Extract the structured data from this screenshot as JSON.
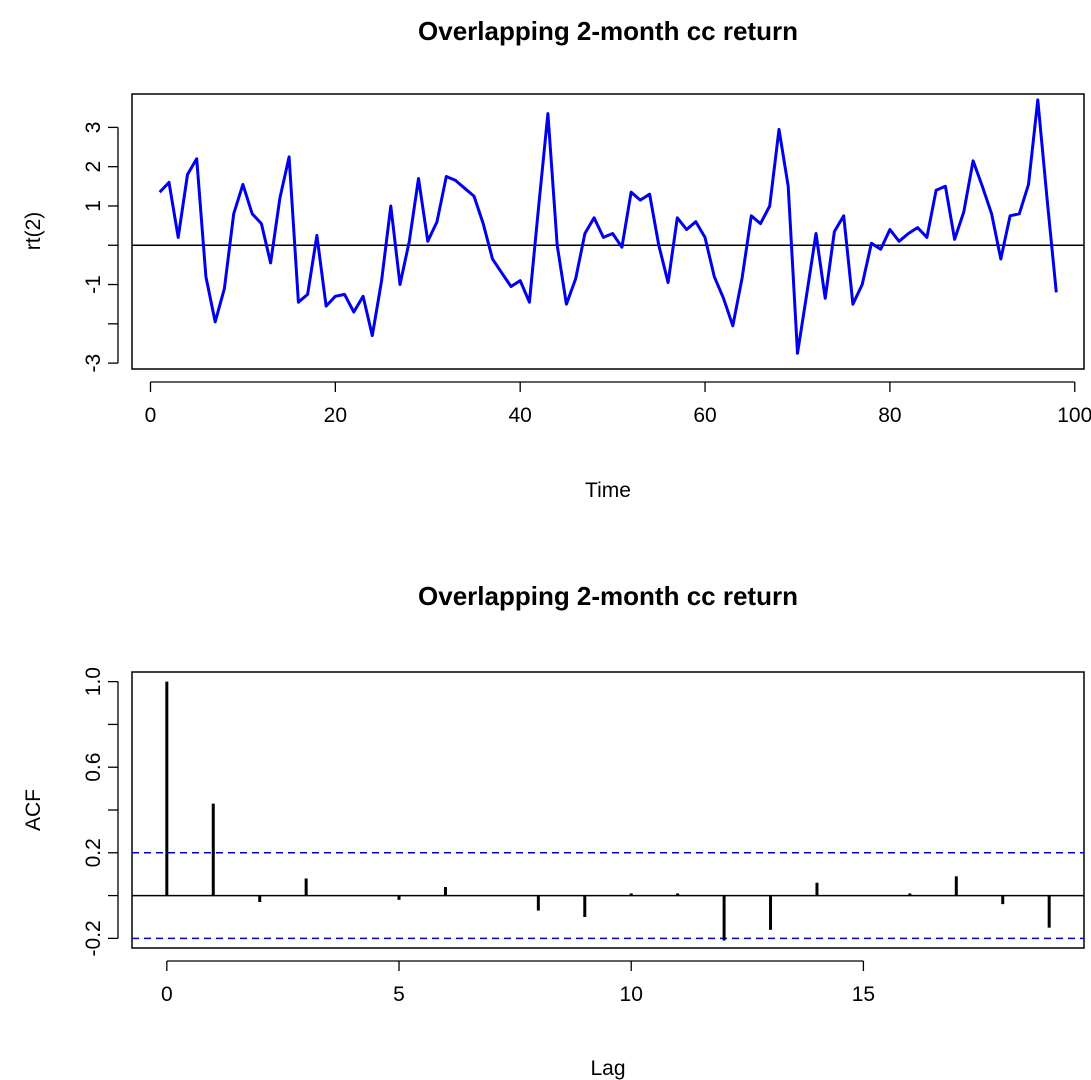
{
  "chart_data": [
    {
      "type": "line",
      "title": "Overlapping 2-month cc return",
      "xlabel": "Time",
      "ylabel": "rt(2)",
      "xlim": [
        -2,
        101
      ],
      "ylim": [
        -3.15,
        3.85
      ],
      "x_ticks": [
        0,
        20,
        40,
        60,
        80,
        100
      ],
      "y_ticks": [
        -3,
        -2,
        -1,
        0,
        1,
        2,
        3
      ],
      "y_tick_labels": [
        "-3",
        "",
        "-1",
        "",
        "1",
        "2",
        "3"
      ],
      "reference_line": 0,
      "colors": {
        "series": "#0000ee",
        "reference": "#000000"
      },
      "series": [
        {
          "x": [
            1,
            2,
            3,
            4,
            5,
            6,
            7,
            8,
            9,
            10,
            11,
            12,
            13,
            14,
            15,
            16,
            17,
            18,
            19,
            20,
            21,
            22,
            23,
            24,
            25,
            26,
            27,
            28,
            29,
            30,
            31,
            32,
            33,
            34,
            35,
            36,
            37,
            38,
            39,
            40,
            41,
            42,
            43,
            44,
            45,
            46,
            47,
            48,
            49,
            50,
            51,
            52,
            53,
            54,
            55,
            56,
            57,
            58,
            59,
            60,
            61,
            62,
            63,
            64,
            65,
            66,
            67,
            68,
            69,
            70,
            71,
            72,
            73,
            74,
            75,
            76,
            77,
            78,
            79,
            80,
            81,
            82,
            83,
            84,
            85,
            86,
            87,
            88,
            89,
            90,
            91,
            92,
            93,
            94,
            95,
            96,
            97,
            98
          ],
          "values": [
            1.35,
            1.6,
            0.2,
            1.8,
            2.2,
            -0.8,
            -1.95,
            -1.1,
            0.8,
            1.55,
            0.8,
            0.55,
            -0.45,
            1.2,
            2.25,
            -1.45,
            -1.25,
            0.25,
            -1.55,
            -1.3,
            -1.25,
            -1.7,
            -1.3,
            -2.3,
            -0.9,
            1.0,
            -1.0,
            0.1,
            1.7,
            0.1,
            0.6,
            1.75,
            1.65,
            1.45,
            1.25,
            0.55,
            -0.35,
            -0.7,
            -1.05,
            -0.9,
            -1.45,
            1.0,
            3.35,
            0.0,
            -1.5,
            -0.85,
            0.3,
            0.7,
            0.2,
            0.3,
            -0.05,
            1.35,
            1.15,
            1.3,
            0.0,
            -0.95,
            0.7,
            0.4,
            0.6,
            0.2,
            -0.8,
            -1.35,
            -2.05,
            -0.85,
            0.75,
            0.55,
            1.0,
            2.95,
            1.5,
            -2.75,
            -1.25,
            0.3,
            -1.35,
            0.35,
            0.75,
            -1.5,
            -1.0,
            0.05,
            -0.1,
            0.4,
            0.1,
            0.3,
            0.45,
            0.2,
            1.4,
            1.5,
            0.15,
            0.85,
            2.15,
            1.5,
            0.8,
            -0.35,
            0.75,
            0.8,
            1.55,
            3.7,
            1.2,
            -1.2
          ]
        }
      ]
    },
    {
      "type": "bar",
      "title": "Overlapping 2-month cc return",
      "xlabel": "Lag",
      "ylabel": "ACF",
      "xlim": [
        -0.75,
        19.75
      ],
      "ylim": [
        -0.245,
        1.045
      ],
      "x_ticks": [
        0,
        5,
        10,
        15
      ],
      "y_ticks": [
        -0.2,
        0.0,
        0.2,
        0.4,
        0.6,
        0.8,
        1.0
      ],
      "y_tick_labels": [
        "-0.2",
        "",
        "0.2",
        "",
        "0.6",
        "",
        "1.0"
      ],
      "confidence_band": [
        0.2,
        -0.2
      ],
      "colors": {
        "bars": "#000000",
        "band": "#0000cc"
      },
      "lags": [
        0,
        1,
        2,
        3,
        4,
        5,
        6,
        7,
        8,
        9,
        10,
        11,
        12,
        13,
        14,
        15,
        16,
        17,
        18,
        19
      ],
      "values": [
        1.0,
        0.43,
        -0.03,
        0.08,
        0.0,
        -0.02,
        0.04,
        0.0,
        -0.07,
        -0.1,
        0.01,
        0.01,
        -0.21,
        -0.16,
        0.06,
        0.0,
        0.01,
        0.09,
        -0.04,
        -0.15
      ]
    }
  ]
}
